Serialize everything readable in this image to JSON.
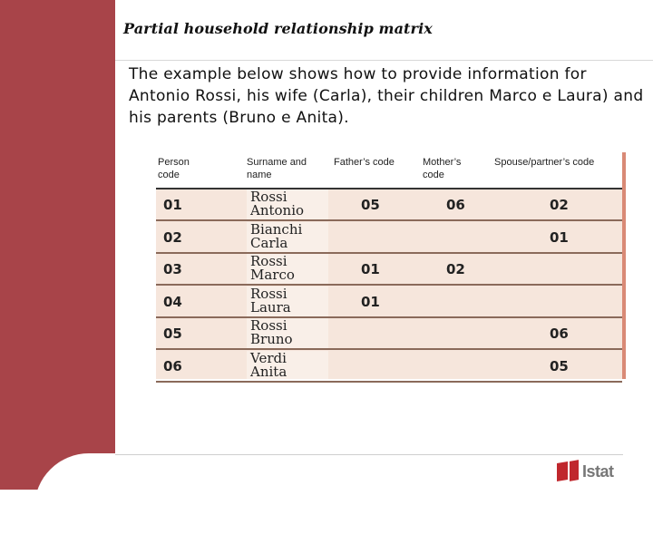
{
  "title": "Partial household relationship matrix",
  "intro": "The example below shows how to provide information for Antonio Rossi, his wife (Carla), their children Marco e Laura) and his parents (Bruno e Anita).",
  "matrix": {
    "headers": {
      "person_code": "Person\ncode",
      "surname_name": "Surname and\nname",
      "father": "Father’s code",
      "mother": "Mother’s\ncode",
      "spouse": "Spouse/partner’s code"
    },
    "rows": [
      {
        "code": "01",
        "surname": "Rossi",
        "name": "Antonio",
        "father": "05",
        "mother": "06",
        "spouse": "02"
      },
      {
        "code": "02",
        "surname": "Bianchi",
        "name": "Carla",
        "father": "",
        "mother": "",
        "spouse": "01"
      },
      {
        "code": "03",
        "surname": "Rossi",
        "name": "Marco",
        "father": "01",
        "mother": "02",
        "spouse": ""
      },
      {
        "code": "04",
        "surname": "Rossi",
        "name": "Laura",
        "father": "01",
        "mother": "",
        "spouse": ""
      },
      {
        "code": "05",
        "surname": "Rossi",
        "name": "Bruno",
        "father": "",
        "mother": "",
        "spouse": "06"
      },
      {
        "code": "06",
        "surname": "Verdi",
        "name": "Anita",
        "father": "",
        "mother": "",
        "spouse": "05"
      }
    ]
  },
  "logo": {
    "text": "Istat",
    "color": "#c0272d"
  },
  "colors": {
    "sidebar": "#a84449",
    "table_bg": "#f6e6dc"
  }
}
